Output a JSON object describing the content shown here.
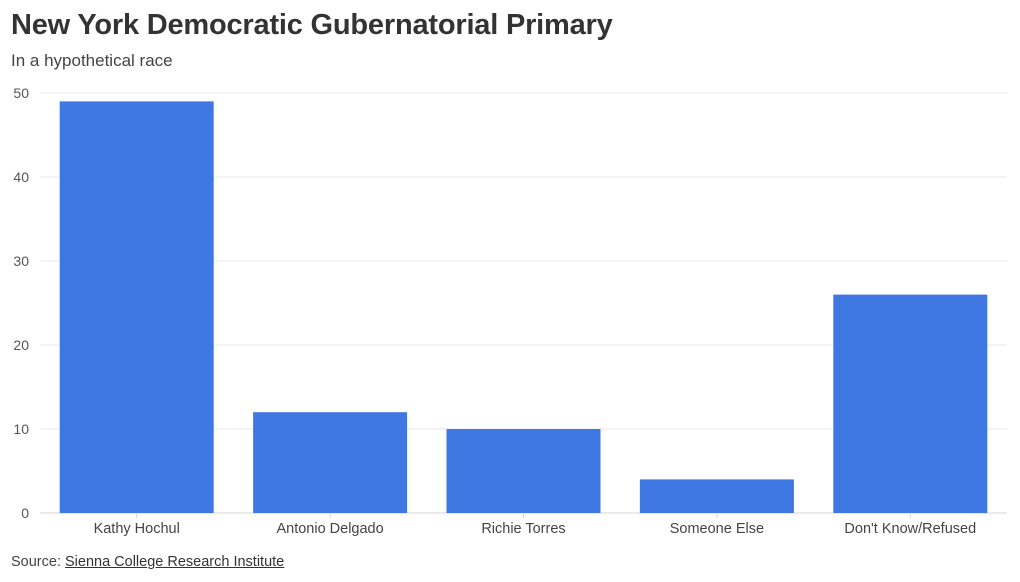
{
  "chart_data": {
    "type": "bar",
    "title": "New York Democratic Gubernatorial Primary",
    "subtitle": "In a hypothetical race",
    "categories": [
      "Kathy Hochul",
      "Antonio Delgado",
      "Richie Torres",
      "Someone Else",
      "Don't Know/Refused"
    ],
    "values": [
      49,
      12,
      10,
      4,
      26
    ],
    "ylim": [
      0,
      50
    ],
    "yticks": [
      "0",
      "10",
      "20",
      "30",
      "40",
      "50"
    ],
    "xlabel": "",
    "ylabel": "",
    "grid": true,
    "bar_color": "#3f78e3"
  },
  "source": {
    "prefix": "Source: ",
    "link_text": "Sienna College Research Institute"
  }
}
